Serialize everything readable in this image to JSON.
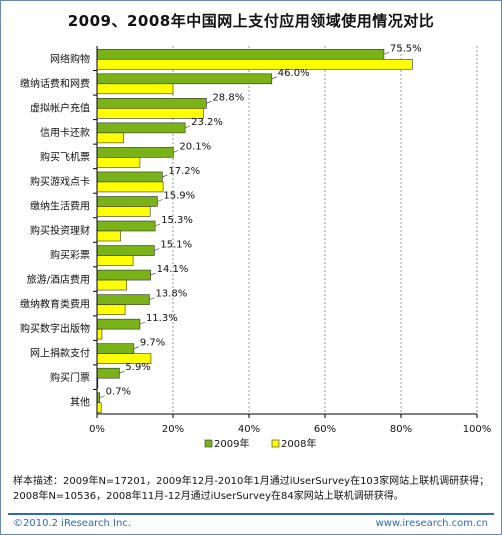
{
  "chart_data": {
    "type": "bar",
    "orientation": "horizontal",
    "title": "2009、2008年中国网上支付应用领域使用情况对比",
    "categories": [
      "网络购物",
      "缴纳话费和网费",
      "虚拟帐户充值",
      "信用卡还款",
      "购买飞机票",
      "购买游戏点卡",
      "缴纳生活费用",
      "购买投资理财",
      "购买彩票",
      "旅游/酒店费用",
      "缴纳教育类费用",
      "购买数字出版物",
      "网上捐款支付",
      "购买门票",
      "其他"
    ],
    "series": [
      {
        "name": "2009年",
        "color": "#7ab317",
        "values": [
          75.5,
          46.0,
          28.8,
          23.2,
          20.1,
          17.2,
          15.9,
          15.3,
          15.1,
          14.1,
          13.8,
          11.3,
          9.7,
          5.9,
          0.7
        ]
      },
      {
        "name": "2008年",
        "color": "#ffff00",
        "values": [
          83.0,
          20.0,
          28.0,
          7.0,
          11.3,
          17.4,
          14.0,
          6.2,
          9.5,
          7.8,
          7.4,
          1.3,
          14.2,
          0.2,
          1.1
        ]
      }
    ],
    "data_labels": [
      "75.5%",
      "46.0%",
      "28.8%",
      "23.2%",
      "20.1%",
      "17.2%",
      "15.9%",
      "15.3%",
      "15.1%",
      "14.1%",
      "13.8%",
      "11.3%",
      "9.7%",
      "5.9%",
      "0.7%"
    ],
    "xlim": [
      0,
      100
    ],
    "xticks": [
      "0%",
      "20%",
      "40%",
      "60%",
      "80%",
      "100%"
    ],
    "legend_position": "bottom"
  },
  "notes": {
    "line1": "样本描述：2009年N=17201，2009年12月-2010年1月通过iUserSurvey在103家网站上联机调研获得；",
    "line2": "2008年N=10536，2008年11月-12月通过iUserSurvey在84家网站上联机调研获得。"
  },
  "footer": {
    "copyright": "©2010.2 iResearch Inc.",
    "website": "www.iresearch.com.cn"
  },
  "colors": {
    "axis": "#000000",
    "grid": "#999999",
    "bar_stroke": "#333333",
    "brand": "#2d6bb3"
  }
}
